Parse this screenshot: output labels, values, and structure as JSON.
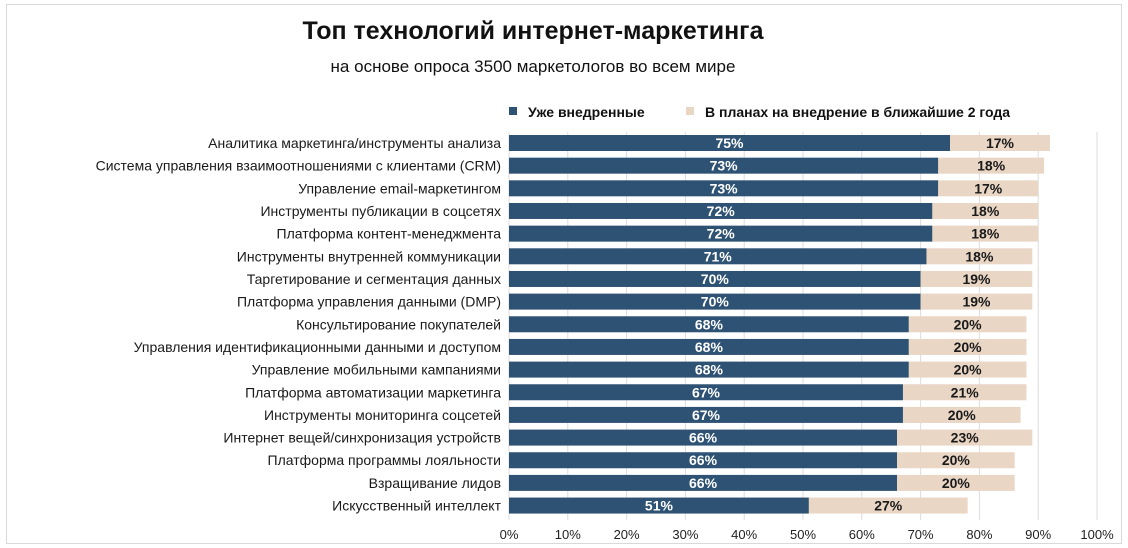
{
  "chart_data": {
    "type": "bar",
    "orientation": "horizontal",
    "stacked": true,
    "title": "Топ технологий интернет-маркетинга",
    "subtitle": "на основе опроса 3500 маркетологов во всем мире",
    "legend_position": "top-right",
    "grid": true,
    "xlim": [
      0,
      100
    ],
    "x_ticks": [
      "0%",
      "10%",
      "20%",
      "30%",
      "40%",
      "50%",
      "60%",
      "70%",
      "80%",
      "90%",
      "100%"
    ],
    "categories": [
      "Аналитика маркетинга/инструменты анализа",
      "Система управления взаимоотношениями с клиентами (CRM)",
      "Управление email-маркетингом",
      "Инструменты публикации в соцсетях",
      "Платформа контент-менеджмента",
      "Инструменты внутренней коммуникации",
      "Таргетирование и сегментация данных",
      "Платформа управления данными (DMP)",
      "Консультирование покупателей",
      "Управления идентификационными данными и доступом",
      "Управление мобильными кампаниями",
      "Платформа автоматизации маркетинга",
      "Инструменты мониторинга соцсетей",
      "Интернет вещей/синхронизация устройств",
      "Платформа программы лояльности",
      "Взращивание лидов",
      "Искусственный интеллект"
    ],
    "series": [
      {
        "name": "Уже внедренные",
        "color": "#2e5273",
        "values": [
          75,
          73,
          73,
          72,
          72,
          71,
          70,
          70,
          68,
          68,
          68,
          67,
          67,
          66,
          66,
          66,
          51
        ],
        "labels": [
          "75%",
          "73%",
          "73%",
          "72%",
          "72%",
          "71%",
          "70%",
          "70%",
          "68%",
          "68%",
          "68%",
          "67%",
          "67%",
          "66%",
          "66%",
          "66%",
          "51%"
        ]
      },
      {
        "name": "В планах на внедрение в ближайшие 2 года",
        "color": "#e9d6c5",
        "values": [
          17,
          18,
          17,
          18,
          18,
          18,
          19,
          19,
          20,
          20,
          20,
          21,
          20,
          23,
          20,
          20,
          27
        ],
        "labels": [
          "17%",
          "18%",
          "17%",
          "18%",
          "18%",
          "18%",
          "19%",
          "19%",
          "20%",
          "20%",
          "20%",
          "21%",
          "20%",
          "23%",
          "20%",
          "20%",
          "27%"
        ]
      }
    ]
  }
}
